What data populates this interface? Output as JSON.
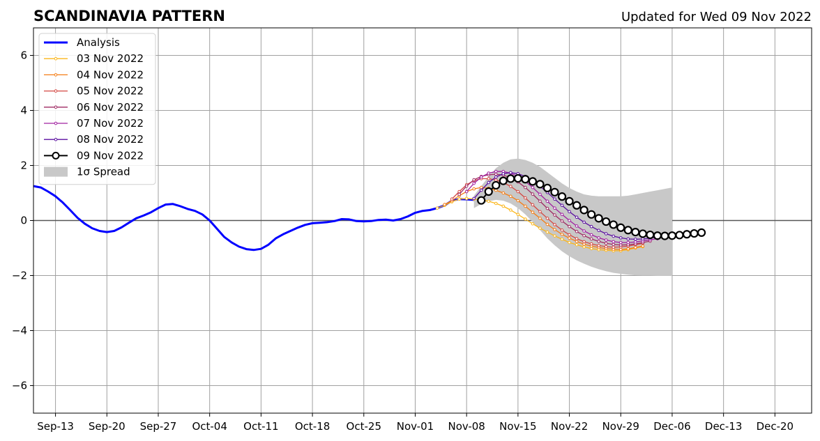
{
  "title": "SCANDINAVIA PATTERN",
  "subtitle": "Updated for Wed 09 Nov 2022",
  "chart_data": {
    "type": "line",
    "title": "SCANDINAVIA PATTERN",
    "subtitle": "Updated for Wed 09 Nov 2022",
    "xlabel": "",
    "ylabel": "",
    "x_range": [
      "2022-09-10",
      "2022-12-25"
    ],
    "ylim": [
      -7,
      7
    ],
    "grid": true,
    "legend_position": "top-left",
    "x_ticks": [
      {
        "date": "2022-09-13",
        "label": "Sep-13"
      },
      {
        "date": "2022-09-20",
        "label": "Sep-20"
      },
      {
        "date": "2022-09-27",
        "label": "Sep-27"
      },
      {
        "date": "2022-10-04",
        "label": "Oct-04"
      },
      {
        "date": "2022-10-11",
        "label": "Oct-11"
      },
      {
        "date": "2022-10-18",
        "label": "Oct-18"
      },
      {
        "date": "2022-10-25",
        "label": "Oct-25"
      },
      {
        "date": "2022-11-01",
        "label": "Nov-01"
      },
      {
        "date": "2022-11-08",
        "label": "Nov-08"
      },
      {
        "date": "2022-11-15",
        "label": "Nov-15"
      },
      {
        "date": "2022-11-22",
        "label": "Nov-22"
      },
      {
        "date": "2022-11-29",
        "label": "Nov-29"
      },
      {
        "date": "2022-12-06",
        "label": "Dec-06"
      },
      {
        "date": "2022-12-13",
        "label": "Dec-13"
      },
      {
        "date": "2022-12-20",
        "label": "Dec-20"
      }
    ],
    "y_ticks": [
      {
        "value": -6,
        "label": "−6"
      },
      {
        "value": -4,
        "label": "−4"
      },
      {
        "value": -2,
        "label": "−2"
      },
      {
        "value": 0,
        "label": "0"
      },
      {
        "value": 2,
        "label": "2"
      },
      {
        "value": 4,
        "label": "4"
      },
      {
        "value": 6,
        "label": "6"
      }
    ],
    "analysis": {
      "name": "Analysis",
      "color": "#0000ff",
      "points": [
        [
          "2022-09-10",
          1.25
        ],
        [
          "2022-09-11",
          1.2
        ],
        [
          "2022-09-12",
          1.05
        ],
        [
          "2022-09-13",
          0.88
        ],
        [
          "2022-09-14",
          0.65
        ],
        [
          "2022-09-15",
          0.38
        ],
        [
          "2022-09-16",
          0.1
        ],
        [
          "2022-09-17",
          -0.12
        ],
        [
          "2022-09-18",
          -0.28
        ],
        [
          "2022-09-19",
          -0.38
        ],
        [
          "2022-09-20",
          -0.42
        ],
        [
          "2022-09-21",
          -0.38
        ],
        [
          "2022-09-22",
          -0.25
        ],
        [
          "2022-09-23",
          -0.08
        ],
        [
          "2022-09-24",
          0.08
        ],
        [
          "2022-09-25",
          0.18
        ],
        [
          "2022-09-26",
          0.3
        ],
        [
          "2022-09-27",
          0.45
        ],
        [
          "2022-09-28",
          0.58
        ],
        [
          "2022-09-29",
          0.6
        ],
        [
          "2022-09-30",
          0.52
        ],
        [
          "2022-10-01",
          0.42
        ],
        [
          "2022-10-02",
          0.35
        ],
        [
          "2022-10-03",
          0.22
        ],
        [
          "2022-10-04",
          0.0
        ],
        [
          "2022-10-05",
          -0.3
        ],
        [
          "2022-10-06",
          -0.6
        ],
        [
          "2022-10-07",
          -0.8
        ],
        [
          "2022-10-08",
          -0.95
        ],
        [
          "2022-10-09",
          -1.04
        ],
        [
          "2022-10-10",
          -1.07
        ],
        [
          "2022-10-11",
          -1.03
        ],
        [
          "2022-10-12",
          -0.88
        ],
        [
          "2022-10-13",
          -0.65
        ],
        [
          "2022-10-14",
          -0.5
        ],
        [
          "2022-10-15",
          -0.38
        ],
        [
          "2022-10-16",
          -0.26
        ],
        [
          "2022-10-17",
          -0.16
        ],
        [
          "2022-10-18",
          -0.1
        ],
        [
          "2022-10-19",
          -0.08
        ],
        [
          "2022-10-20",
          -0.06
        ],
        [
          "2022-10-21",
          -0.02
        ],
        [
          "2022-10-22",
          0.05
        ],
        [
          "2022-10-23",
          0.04
        ],
        [
          "2022-10-24",
          -0.02
        ],
        [
          "2022-10-25",
          -0.03
        ],
        [
          "2022-10-26",
          -0.02
        ],
        [
          "2022-10-27",
          0.02
        ],
        [
          "2022-10-28",
          0.03
        ],
        [
          "2022-10-29",
          0.0
        ],
        [
          "2022-10-30",
          0.05
        ],
        [
          "2022-10-31",
          0.15
        ],
        [
          "2022-11-01",
          0.28
        ],
        [
          "2022-11-02",
          0.35
        ],
        [
          "2022-11-03",
          0.38
        ],
        [
          "2022-11-04",
          0.45
        ],
        [
          "2022-11-05",
          0.55
        ],
        [
          "2022-11-06",
          0.72
        ],
        [
          "2022-11-07",
          0.78
        ],
        [
          "2022-11-08",
          0.77
        ],
        [
          "2022-11-09",
          0.75
        ]
      ]
    },
    "spread": {
      "name": "1σ Spread",
      "color": "#c8c8c8",
      "start": "2022-11-09",
      "upper": [
        0.9,
        1.25,
        1.6,
        1.9,
        2.1,
        2.22,
        2.25,
        2.2,
        2.1,
        1.95,
        1.75,
        1.55,
        1.35,
        1.18,
        1.05,
        0.95,
        0.9,
        0.88,
        0.88,
        0.88,
        0.88,
        0.9,
        0.95,
        1.0,
        1.05,
        1.1,
        1.15,
        1.2
      ],
      "lower": [
        0.45,
        0.6,
        0.7,
        0.75,
        0.72,
        0.62,
        0.45,
        0.22,
        -0.05,
        -0.35,
        -0.65,
        -0.9,
        -1.12,
        -1.3,
        -1.45,
        -1.57,
        -1.68,
        -1.77,
        -1.84,
        -1.9,
        -1.94,
        -1.97,
        -1.99,
        -2.0,
        -2.0,
        -2.01,
        -2.01,
        -2.01
      ]
    },
    "series": [
      {
        "name": "03 Nov 2022",
        "color": "#fbb61a",
        "start": "2022-11-04",
        "values": [
          0.45,
          0.55,
          0.68,
          0.78,
          0.8,
          0.78,
          0.75,
          0.7,
          0.62,
          0.52,
          0.38,
          0.22,
          0.05,
          -0.12,
          -0.28,
          -0.42,
          -0.56,
          -0.68,
          -0.8,
          -0.88,
          -0.96,
          -1.02,
          -1.06,
          -1.08,
          -1.1,
          -1.1,
          -1.06,
          -1.0,
          -0.95
        ]
      },
      {
        "name": "04 Nov 2022",
        "color": "#f57d15",
        "start": "2022-11-05",
        "values": [
          0.58,
          0.72,
          0.9,
          1.05,
          1.15,
          1.2,
          1.17,
          1.1,
          1.0,
          0.88,
          0.72,
          0.52,
          0.3,
          0.08,
          -0.14,
          -0.33,
          -0.5,
          -0.64,
          -0.76,
          -0.86,
          -0.93,
          -0.98,
          -1.02,
          -1.04,
          -1.05,
          -1.03,
          -0.98,
          -0.93
        ]
      },
      {
        "name": "05 Nov 2022",
        "color": "#d44842",
        "start": "2022-11-06",
        "values": [
          0.78,
          1.05,
          1.3,
          1.45,
          1.52,
          1.52,
          1.47,
          1.38,
          1.24,
          1.05,
          0.82,
          0.57,
          0.32,
          0.08,
          -0.15,
          -0.35,
          -0.52,
          -0.66,
          -0.77,
          -0.85,
          -0.91,
          -0.95,
          -0.97,
          -0.96,
          -0.93,
          -0.88,
          -0.83
        ]
      },
      {
        "name": "06 Nov 2022",
        "color": "#9f2a63",
        "start": "2022-11-07",
        "values": [
          0.95,
          1.25,
          1.48,
          1.6,
          1.66,
          1.68,
          1.65,
          1.55,
          1.4,
          1.2,
          0.96,
          0.7,
          0.44,
          0.2,
          -0.02,
          -0.22,
          -0.4,
          -0.55,
          -0.67,
          -0.76,
          -0.83,
          -0.87,
          -0.89,
          -0.88,
          -0.85,
          -0.8,
          -0.75
        ]
      },
      {
        "name": "07 Nov 2022",
        "color": "#a020a0",
        "start": "2022-11-08",
        "values": [
          1.05,
          1.35,
          1.58,
          1.72,
          1.78,
          1.78,
          1.72,
          1.6,
          1.42,
          1.2,
          0.95,
          0.7,
          0.45,
          0.22,
          0.0,
          -0.2,
          -0.38,
          -0.52,
          -0.63,
          -0.71,
          -0.77,
          -0.8,
          -0.8,
          -0.78,
          -0.74,
          -0.7,
          -0.66
        ]
      },
      {
        "name": "08 Nov 2022",
        "color": "#5b0fa0",
        "start": "2022-11-09",
        "values": [
          0.8,
          1.1,
          1.38,
          1.58,
          1.7,
          1.74,
          1.7,
          1.6,
          1.44,
          1.24,
          1.02,
          0.78,
          0.55,
          0.32,
          0.12,
          -0.06,
          -0.22,
          -0.36,
          -0.48,
          -0.57,
          -0.63,
          -0.67,
          -0.68,
          -0.67,
          -0.64,
          -0.6,
          -0.56
        ]
      },
      {
        "name": "09 Nov 2022",
        "color": "#000000",
        "start": "2022-11-10",
        "values": [
          0.73,
          1.05,
          1.28,
          1.44,
          1.52,
          1.53,
          1.5,
          1.42,
          1.32,
          1.18,
          1.03,
          0.87,
          0.7,
          0.55,
          0.38,
          0.22,
          0.08,
          -0.04,
          -0.15,
          -0.26,
          -0.35,
          -0.42,
          -0.48,
          -0.52,
          -0.55,
          -0.56,
          -0.55,
          -0.53,
          -0.5,
          -0.47,
          -0.44
        ]
      }
    ]
  }
}
